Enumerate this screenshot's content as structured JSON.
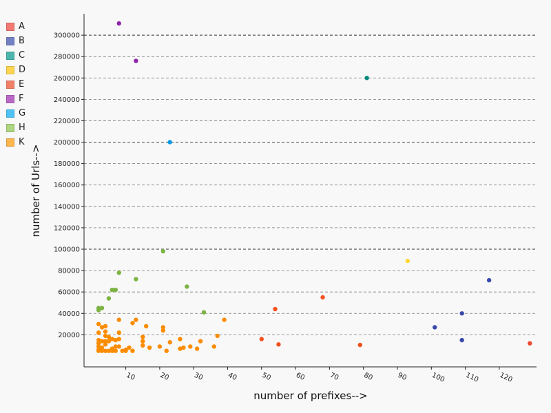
{
  "chart_data": {
    "type": "scatter",
    "title": "",
    "xlabel": "number of prefixes-->",
    "ylabel": "number of Urls-->",
    "xlim": [
      -2,
      132
    ],
    "ylim": [
      -10000,
      320000
    ],
    "x_ticks": [
      10,
      20,
      30,
      40,
      50,
      60,
      70,
      80,
      90,
      100,
      110,
      120
    ],
    "y_ticks": [
      20000,
      40000,
      60000,
      80000,
      100000,
      120000,
      140000,
      160000,
      180000,
      200000,
      220000,
      240000,
      260000,
      280000,
      300000
    ],
    "y_major_lines": [
      100000,
      200000,
      300000
    ],
    "grid": "horizontal dashed",
    "legend_position": "left",
    "series": [
      {
        "name": "A",
        "color": "#ee4a33",
        "legend_color": "#f27a72",
        "points": [
          [
            129,
            12000
          ]
        ]
      },
      {
        "name": "B",
        "color": "#3949ab",
        "legend_color": "#7181c4",
        "points": [
          [
            101,
            27000
          ],
          [
            109,
            40000
          ],
          [
            109,
            15000
          ],
          [
            117,
            71000
          ]
        ]
      },
      {
        "name": "C",
        "color": "#00897b",
        "legend_color": "#4db6ac",
        "points": [
          [
            81,
            260000
          ]
        ]
      },
      {
        "name": "D",
        "color": "#fdd835",
        "legend_color": "#ffd54f",
        "points": [
          [
            93,
            89000
          ]
        ]
      },
      {
        "name": "E",
        "color": "#f4511e",
        "legend_color": "#f28069",
        "points": [
          [
            50,
            16000
          ],
          [
            54,
            44000
          ],
          [
            55,
            11000
          ],
          [
            68,
            55000
          ],
          [
            79,
            10500
          ]
        ]
      },
      {
        "name": "F",
        "color": "#8e24aa",
        "legend_color": "#ba68c8",
        "points": [
          [
            8,
            311000
          ],
          [
            13,
            276000
          ]
        ]
      },
      {
        "name": "G",
        "color": "#039be5",
        "legend_color": "#4fc3f7",
        "points": [
          [
            23,
            200000
          ]
        ]
      },
      {
        "name": "H",
        "color": "#7cb342",
        "legend_color": "#aed581",
        "points": [
          [
            21,
            98000
          ],
          [
            8,
            78000
          ],
          [
            13,
            72000
          ],
          [
            28,
            65000
          ],
          [
            6,
            62000
          ],
          [
            7,
            62000
          ],
          [
            5,
            54000
          ],
          [
            2,
            45000
          ],
          [
            3,
            45000
          ],
          [
            2,
            43000
          ],
          [
            33,
            41000
          ]
        ]
      },
      {
        "name": "K",
        "color": "#fb8c00",
        "legend_color": "#ffb74d",
        "points": [
          [
            2,
            30000
          ],
          [
            3,
            27000
          ],
          [
            4,
            28000
          ],
          [
            2,
            22000
          ],
          [
            4,
            23000
          ],
          [
            8,
            22000
          ],
          [
            2,
            15000
          ],
          [
            2,
            12000
          ],
          [
            2,
            9000
          ],
          [
            2,
            6000
          ],
          [
            2,
            5000
          ],
          [
            3,
            5000
          ],
          [
            4,
            5000
          ],
          [
            5,
            5000
          ],
          [
            6,
            5000
          ],
          [
            7,
            5000
          ],
          [
            9,
            5000
          ],
          [
            10,
            5000
          ],
          [
            12,
            5000
          ],
          [
            22,
            5000
          ],
          [
            3,
            8000
          ],
          [
            4,
            11000
          ],
          [
            5,
            14000
          ],
          [
            6,
            16000
          ],
          [
            7,
            15000
          ],
          [
            8,
            16000
          ],
          [
            4,
            19000
          ],
          [
            5,
            18000
          ],
          [
            6,
            7000
          ],
          [
            7,
            9000
          ],
          [
            8,
            9000
          ],
          [
            10,
            6000
          ],
          [
            11,
            8000
          ],
          [
            3,
            14000
          ],
          [
            4,
            14000
          ],
          [
            8,
            34000
          ],
          [
            13,
            34000
          ],
          [
            12,
            31000
          ],
          [
            16,
            28000
          ],
          [
            15,
            18000
          ],
          [
            15,
            14000
          ],
          [
            15,
            10000
          ],
          [
            17,
            8000
          ],
          [
            20,
            9000
          ],
          [
            21,
            24000
          ],
          [
            21,
            27000
          ],
          [
            23,
            13000
          ],
          [
            26,
            16000
          ],
          [
            26,
            7000
          ],
          [
            27,
            8000
          ],
          [
            29,
            9000
          ],
          [
            31,
            7000
          ],
          [
            32,
            14000
          ],
          [
            36,
            9000
          ],
          [
            37,
            19000
          ],
          [
            39,
            34000
          ]
        ]
      }
    ]
  }
}
